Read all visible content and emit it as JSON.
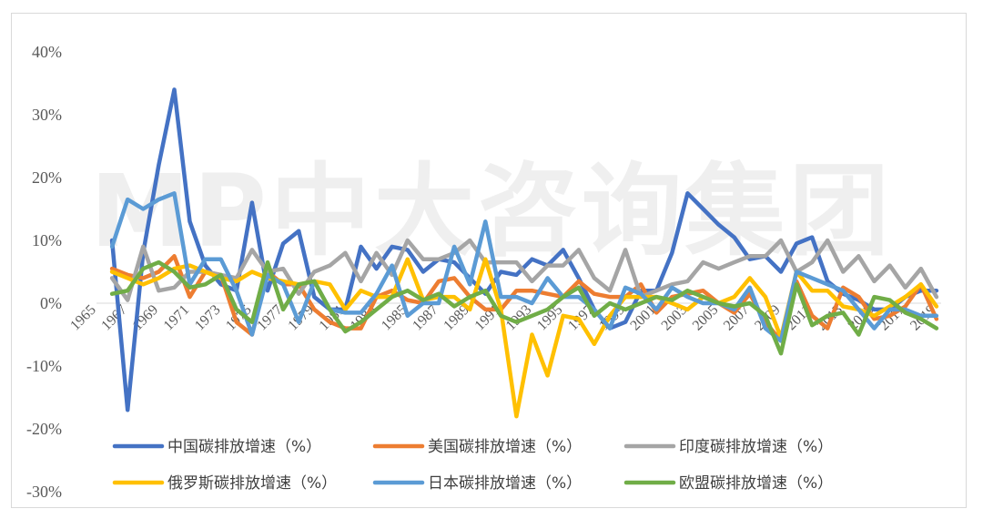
{
  "watermark": "MP中大咨询集团",
  "chart_data": {
    "type": "line",
    "ylim": [
      -30,
      40
    ],
    "ytick_labels": [
      "40%",
      "30%",
      "20%",
      "10%",
      "0%",
      "-10%",
      "-20%",
      "-30%"
    ],
    "ytick_values": [
      40,
      30,
      20,
      10,
      0,
      -10,
      -20,
      -30
    ],
    "x": [
      1966,
      1967,
      1968,
      1969,
      1970,
      1971,
      1972,
      1973,
      1974,
      1975,
      1976,
      1977,
      1978,
      1979,
      1980,
      1981,
      1982,
      1983,
      1984,
      1985,
      1986,
      1987,
      1988,
      1989,
      1990,
      1991,
      1992,
      1993,
      1994,
      1995,
      1996,
      1997,
      1998,
      1999,
      2000,
      2001,
      2002,
      2003,
      2004,
      2005,
      2006,
      2007,
      2008,
      2009,
      2010,
      2011,
      2012,
      2013,
      2014,
      2015,
      2016,
      2017,
      2018,
      2019
    ],
    "xtick_labels": [
      "1965",
      "1967",
      "1969",
      "1971",
      "1973",
      "1975",
      "1977",
      "1979",
      "1981",
      "1983",
      "1985",
      "1987",
      "1989",
      "1991",
      "1993",
      "1995",
      "1997",
      "1999",
      "2001",
      "2003",
      "2005",
      "2007",
      "2009",
      "2011",
      "2013",
      "2015",
      "2017",
      "2019"
    ],
    "xtick_values": [
      1965,
      1967,
      1969,
      1971,
      1973,
      1975,
      1977,
      1979,
      1981,
      1983,
      1985,
      1987,
      1989,
      1991,
      1993,
      1995,
      1997,
      1999,
      2001,
      2003,
      2005,
      2007,
      2009,
      2011,
      2013,
      2015,
      2017,
      2019
    ],
    "series": [
      {
        "name": "中国碳排放增速（%）",
        "color": "#4472C4",
        "values": [
          10,
          -17,
          8,
          22,
          34,
          13,
          6,
          3,
          2,
          16,
          2,
          9.5,
          11.5,
          1,
          -1,
          -1,
          9,
          5.5,
          9,
          8.5,
          5,
          7,
          6.5,
          4,
          1.5,
          5,
          4.5,
          7,
          6,
          8.5,
          4,
          -1,
          -4,
          -3,
          2,
          2,
          8,
          17.5,
          15,
          12.5,
          10.5,
          7,
          7.5,
          5,
          9.5,
          10.5,
          3.5,
          1.5,
          0.5,
          -1,
          -1,
          1,
          2,
          2
        ]
      },
      {
        "name": "美国碳排放增速（%）",
        "color": "#ED7D31",
        "values": [
          5.5,
          4.5,
          4,
          5,
          7.5,
          1,
          5,
          4.5,
          -3,
          -5,
          5,
          3,
          3,
          -1,
          -3,
          -4,
          -4,
          1,
          2,
          0.5,
          0,
          3.5,
          4,
          1,
          -1,
          -1,
          2,
          2,
          1.5,
          1,
          3.5,
          1.5,
          1,
          1,
          3,
          -1.5,
          1,
          1.5,
          2,
          0,
          -1.5,
          1.5,
          -3,
          -6,
          3.5,
          -2,
          -4,
          2.5,
          1,
          -2.5,
          -2,
          -0.5,
          3,
          -2.5
        ]
      },
      {
        "name": "印度碳排放增速（%）",
        "color": "#A5A5A5",
        "values": [
          4,
          0.5,
          9,
          2,
          2.5,
          5,
          5,
          4.5,
          4,
          8.5,
          5,
          5.5,
          1.5,
          5,
          6,
          8,
          3.5,
          8,
          4.5,
          10,
          7,
          7,
          8,
          10,
          6.5,
          6.5,
          6.5,
          3.5,
          6,
          6,
          8.5,
          4,
          2,
          8.5,
          1,
          2,
          3,
          3.5,
          6.5,
          5.5,
          6.5,
          7.5,
          7.5,
          10,
          5,
          6.5,
          10,
          5,
          7.5,
          3.5,
          6,
          2.5,
          5.5,
          1
        ]
      },
      {
        "name": "俄罗斯碳排放增速（%）",
        "color": "#FFC000",
        "values": [
          5,
          4,
          3,
          4,
          5.5,
          6,
          5,
          4,
          3.5,
          5,
          4,
          3.5,
          3,
          3.5,
          3,
          -1,
          2,
          1,
          1,
          7,
          0.5,
          1,
          1,
          -1,
          7,
          -1,
          -18,
          -5,
          -11.5,
          -2,
          -2.5,
          -6.5,
          -2,
          1,
          1,
          1,
          0,
          -1,
          1,
          0,
          1,
          4,
          1,
          -5.5,
          5,
          2,
          2,
          -0.5,
          -1,
          -2,
          -0.5,
          1,
          3,
          -0.5
        ]
      },
      {
        "name": "日本碳排放增速（%）",
        "color": "#5B9BD5",
        "values": [
          9,
          16.5,
          15,
          16.5,
          17.5,
          3,
          7,
          7,
          2,
          -5,
          4.5,
          3,
          -3,
          3.5,
          -1,
          -1.5,
          -1.5,
          1.5,
          6,
          -2,
          0,
          0,
          9,
          3,
          13,
          1,
          1,
          0,
          4,
          1,
          1,
          -1,
          -4,
          2.5,
          1.5,
          -1,
          2.5,
          1,
          0,
          0,
          -1,
          2.5,
          -4,
          -6,
          5,
          4,
          3,
          2,
          -1,
          -4,
          -1,
          -1,
          -2,
          -2
        ]
      },
      {
        "name": "欧盟碳排放增速（%）",
        "color": "#70AD47",
        "values": [
          1.5,
          2,
          5.5,
          6.5,
          5,
          2.5,
          3,
          4.5,
          -1,
          -3,
          6.5,
          -1,
          3,
          3.5,
          -1,
          -4.5,
          -3,
          -1,
          1,
          2,
          0.5,
          1.5,
          -0.5,
          1,
          2,
          -2,
          -3,
          -2,
          -1,
          1,
          2.5,
          -2,
          0,
          -1,
          0,
          1,
          0.5,
          2,
          1,
          0,
          -0.5,
          0,
          -2,
          -8,
          3,
          -3.5,
          -2,
          -1.5,
          -5,
          1,
          0.5,
          -1.5,
          -2.5,
          -4
        ]
      }
    ],
    "grid": false,
    "legend_position": "bottom"
  }
}
